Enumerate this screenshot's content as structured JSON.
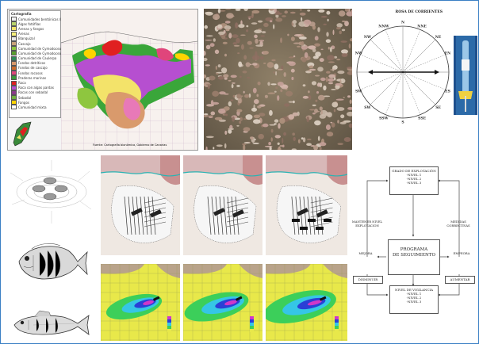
{
  "map_legend": {
    "title": "Cartografía",
    "items": [
      {
        "label": "Comunidades bentónicas (Luis y col.)",
        "color": "#f2f2f2"
      },
      {
        "label": "Algas fotófilas",
        "color": "#b8d36b"
      },
      {
        "label": "Arenas y fangos",
        "color": "#f3e36a"
      },
      {
        "label": "Arenas",
        "color": "#f7f07a"
      },
      {
        "label": "Blanquizal",
        "color": "#e9e9e9"
      },
      {
        "label": "Cascajo",
        "color": "#c8a27a"
      },
      {
        "label": "Comunidad de Cymodocea",
        "color": "#8ec63f"
      },
      {
        "label": "Comunidad de Cymodocea y Caulerpa",
        "color": "#5aa02c"
      },
      {
        "label": "Comunidad de Caulerpa",
        "color": "#2e8b57"
      },
      {
        "label": "Fondos detríticos",
        "color": "#d99a6c"
      },
      {
        "label": "Fondos de cascajo",
        "color": "#cc6b2c"
      },
      {
        "label": "Fondos rocosos",
        "color": "#e0457b"
      },
      {
        "label": "Praderas marinas",
        "color": "#3a9a3a"
      },
      {
        "label": "Roca",
        "color": "#e02020"
      },
      {
        "label": "Roca con algas pardas",
        "color": "#b64fd0"
      },
      {
        "label": "Rocas con sebadal",
        "color": "#8b3a8b"
      },
      {
        "label": "Sebadal",
        "color": "#6fb23f"
      },
      {
        "label": "Fangos",
        "color": "#ffd400"
      },
      {
        "label": "Comunidad mixta",
        "color": "#ffffff"
      }
    ]
  },
  "map_footer": "Fuente: Cartografía bionómica, Gobierno de Canarias",
  "rose": {
    "title": "ROSA DE CORRIENTES",
    "directions": [
      "N",
      "NNE",
      "NE",
      "ENE",
      "E",
      "ESE",
      "SE",
      "SSE",
      "S",
      "SSW",
      "SW",
      "WSW",
      "W",
      "WNW",
      "NW",
      "NNW"
    ]
  },
  "flowchart": {
    "top_box": [
      "GRADO DE EXPLOTACIÓN",
      "-NIVEL 1",
      "-NIVEL 2",
      "-NIVEL 3"
    ],
    "center_box": [
      "PROGRAMA",
      "DE SEGUIMIENTO"
    ],
    "bottom_box": [
      "NIVEL DE VIGILANCIA",
      "-NIVEL 1",
      "-NIVEL 2",
      "-NIVEL 3"
    ],
    "left_box": "DISMINUIR",
    "right_box": "AUMENTAR",
    "label_left_top": [
      "MANTENER NIVEL",
      "EXPLOTACIÓN"
    ],
    "label_right_top": [
      "MEDIDAS CORRECTIVAS"
    ],
    "label_left_mid": "MEJORA",
    "label_right_mid": "EMPEORA"
  },
  "colors": {
    "frame": "#3a7fc4",
    "sea_yellow": "#e8e84a",
    "heat_green": "#3ccf5a",
    "heat_cyan": "#35c6e6",
    "heat_blue": "#2a3fd6",
    "heat_magenta": "#d038c8"
  }
}
